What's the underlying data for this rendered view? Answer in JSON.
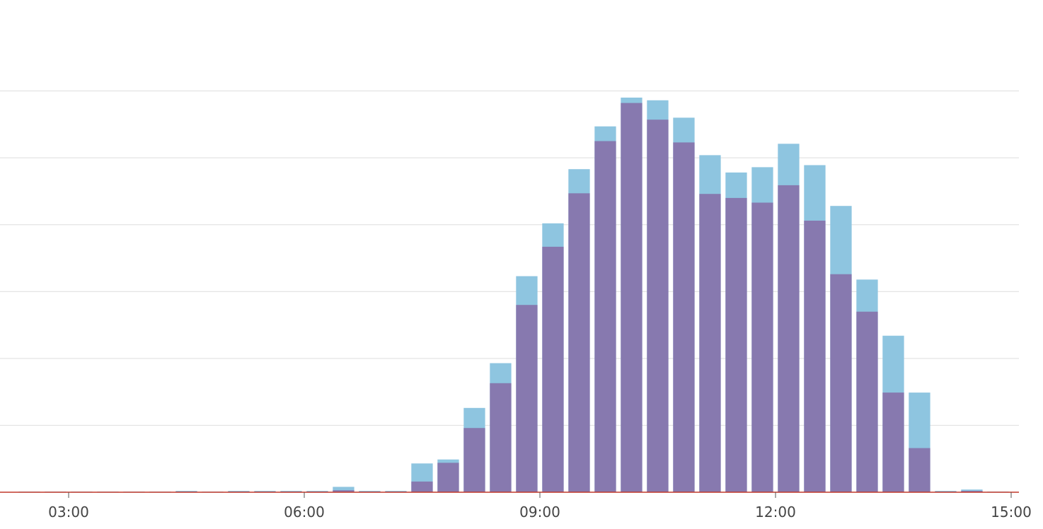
{
  "chart_data": {
    "type": "bar",
    "stacked": "overlay",
    "x_unit": "HH:MM",
    "x": [
      "02:20",
      "02:40",
      "03:00",
      "03:20",
      "03:40",
      "04:00",
      "04:20",
      "04:40",
      "05:00",
      "05:20",
      "05:40",
      "06:00",
      "06:20",
      "06:40",
      "07:00",
      "07:20",
      "07:40",
      "08:00",
      "08:20",
      "08:40",
      "09:00",
      "09:20",
      "09:40",
      "10:00",
      "10:20",
      "10:40",
      "11:00",
      "11:20",
      "11:40",
      "12:00",
      "12:20",
      "12:40",
      "13:00",
      "13:20",
      "13:40",
      "14:00",
      "14:20",
      "14:40"
    ],
    "series": [
      {
        "color": "#8ec5e0",
        "values": [
          0.1,
          0.1,
          0.1,
          0.1,
          0.1,
          0.1,
          0.2,
          0.1,
          0.2,
          0.2,
          0.2,
          0.2,
          0.8,
          0.2,
          0.2,
          4.3,
          4.9,
          12.6,
          19.3,
          32.3,
          40.2,
          48.3,
          54.7,
          59.0,
          58.6,
          56.0,
          50.4,
          47.8,
          48.6,
          52.1,
          48.9,
          42.8,
          31.8,
          23.4,
          14.9,
          0.2,
          0.4,
          0.1
        ]
      },
      {
        "color": "#8779af",
        "values": [
          0.05,
          0.05,
          0.05,
          0.05,
          0.05,
          0.05,
          0.1,
          0.05,
          0.1,
          0.1,
          0.1,
          0.1,
          0.3,
          0.1,
          0.1,
          1.6,
          4.4,
          9.6,
          16.3,
          28.0,
          36.7,
          44.7,
          52.5,
          58.2,
          55.7,
          52.3,
          44.6,
          44.0,
          43.3,
          45.9,
          40.6,
          32.6,
          27.0,
          14.9,
          6.6,
          0.1,
          0.2,
          0.05
        ]
      }
    ],
    "ylim": [
      0,
      70
    ],
    "y_grid_step": 10,
    "grid": "horizontal",
    "baseline_color": "#c0392b",
    "x_ticks": [
      "03:00",
      "06:00",
      "09:00",
      "12:00",
      "15:00"
    ],
    "legend": "none"
  }
}
